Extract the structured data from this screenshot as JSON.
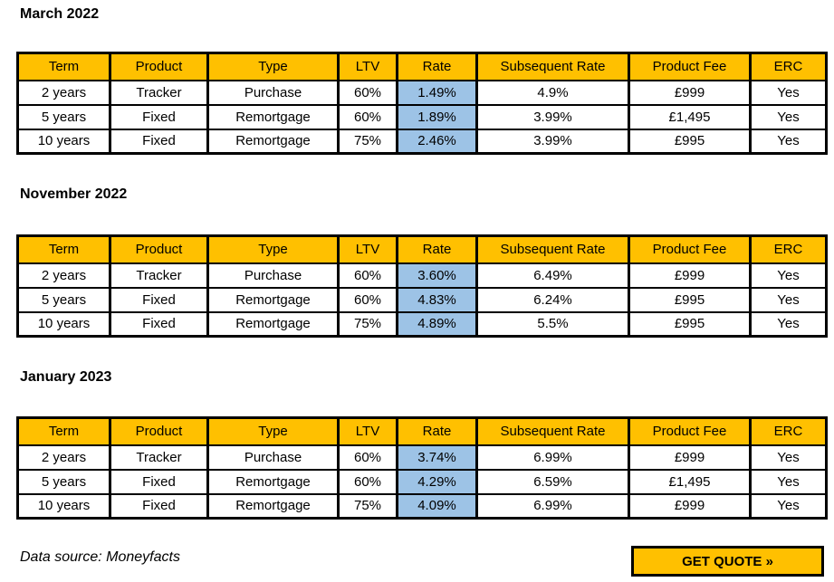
{
  "colors": {
    "header_bg": "#FFC000",
    "rate_highlight_bg": "#9DC3E6",
    "border": "#000000",
    "button_bg": "#FFC000"
  },
  "columns": [
    "Term",
    "Product",
    "Type",
    "LTV",
    "Rate",
    "Subsequent Rate",
    "Product Fee",
    "ERC"
  ],
  "highlighted_column": "Rate",
  "sections": [
    {
      "title": "March 2022",
      "rows": [
        [
          "2 years",
          "Tracker",
          "Purchase",
          "60%",
          "1.49%",
          "4.9%",
          "£999",
          "Yes"
        ],
        [
          "5 years",
          "Fixed",
          "Remortgage",
          "60%",
          "1.89%",
          "3.99%",
          "£1,495",
          "Yes"
        ],
        [
          "10 years",
          "Fixed",
          "Remortgage",
          "75%",
          "2.46%",
          "3.99%",
          "£995",
          "Yes"
        ]
      ]
    },
    {
      "title": "November 2022",
      "rows": [
        [
          "2 years",
          "Tracker",
          "Purchase",
          "60%",
          "3.60%",
          "6.49%",
          "£999",
          "Yes"
        ],
        [
          "5 years",
          "Fixed",
          "Remortgage",
          "60%",
          "4.83%",
          "6.24%",
          "£995",
          "Yes"
        ],
        [
          "10 years",
          "Fixed",
          "Remortgage",
          "75%",
          "4.89%",
          "5.5%",
          "£995",
          "Yes"
        ]
      ]
    },
    {
      "title": "January 2023",
      "rows": [
        [
          "2 years",
          "Tracker",
          "Purchase",
          "60%",
          "3.74%",
          "6.99%",
          "£999",
          "Yes"
        ],
        [
          "5 years",
          "Fixed",
          "Remortgage",
          "60%",
          "4.29%",
          "6.59%",
          "£1,495",
          "Yes"
        ],
        [
          "10 years",
          "Fixed",
          "Remortgage",
          "75%",
          "4.09%",
          "6.99%",
          "£999",
          "Yes"
        ]
      ]
    }
  ],
  "footer": {
    "data_source": "Data source: Moneyfacts",
    "quote_button": "GET QUOTE »"
  }
}
